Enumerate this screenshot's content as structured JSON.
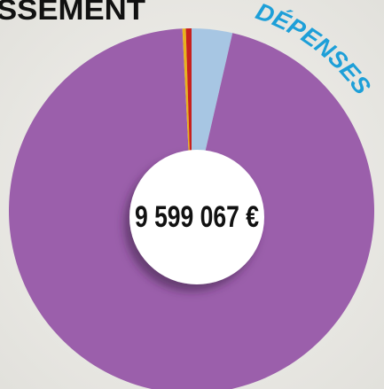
{
  "chart_data": {
    "type": "pie",
    "title": "SSEMENT",
    "subtitle": "DÉPENSES",
    "center_label": "9 599 067 €",
    "values": [
      3.6,
      95.6,
      0.3,
      0.5
    ],
    "colors": [
      "#a7c6e3",
      "#9b5fab",
      "#e8b21e",
      "#c8211d"
    ]
  }
}
